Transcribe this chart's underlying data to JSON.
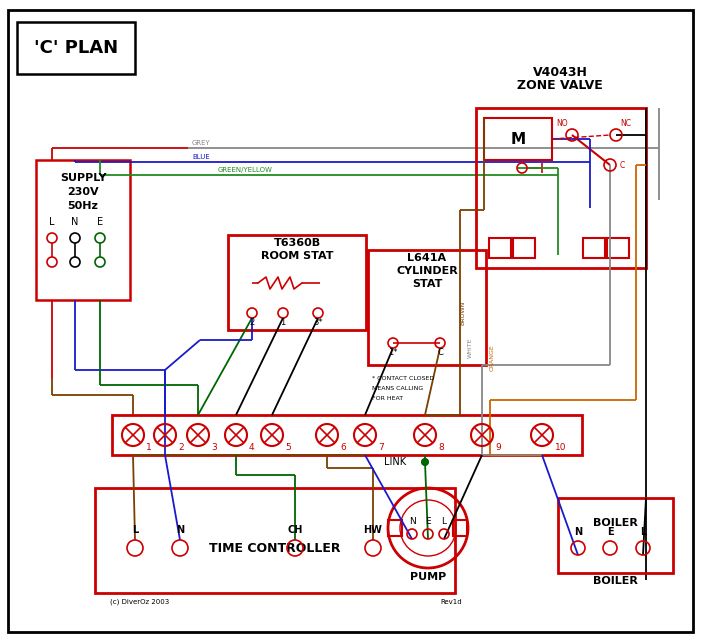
{
  "bg": "#ffffff",
  "black": "#000000",
  "red": "#cc0000",
  "blue": "#1a1acc",
  "green": "#006600",
  "grey": "#888888",
  "brown": "#7b3f00",
  "orange": "#cc6600",
  "gy": "#228b22",
  "title": "'C' PLAN",
  "time_ctrl": "TIME CONTROLLER",
  "pump": "PUMP",
  "boiler": "BOILER",
  "link": "LINK",
  "copyright": "(c) DiverOz 2003",
  "rev": "Rev1d"
}
